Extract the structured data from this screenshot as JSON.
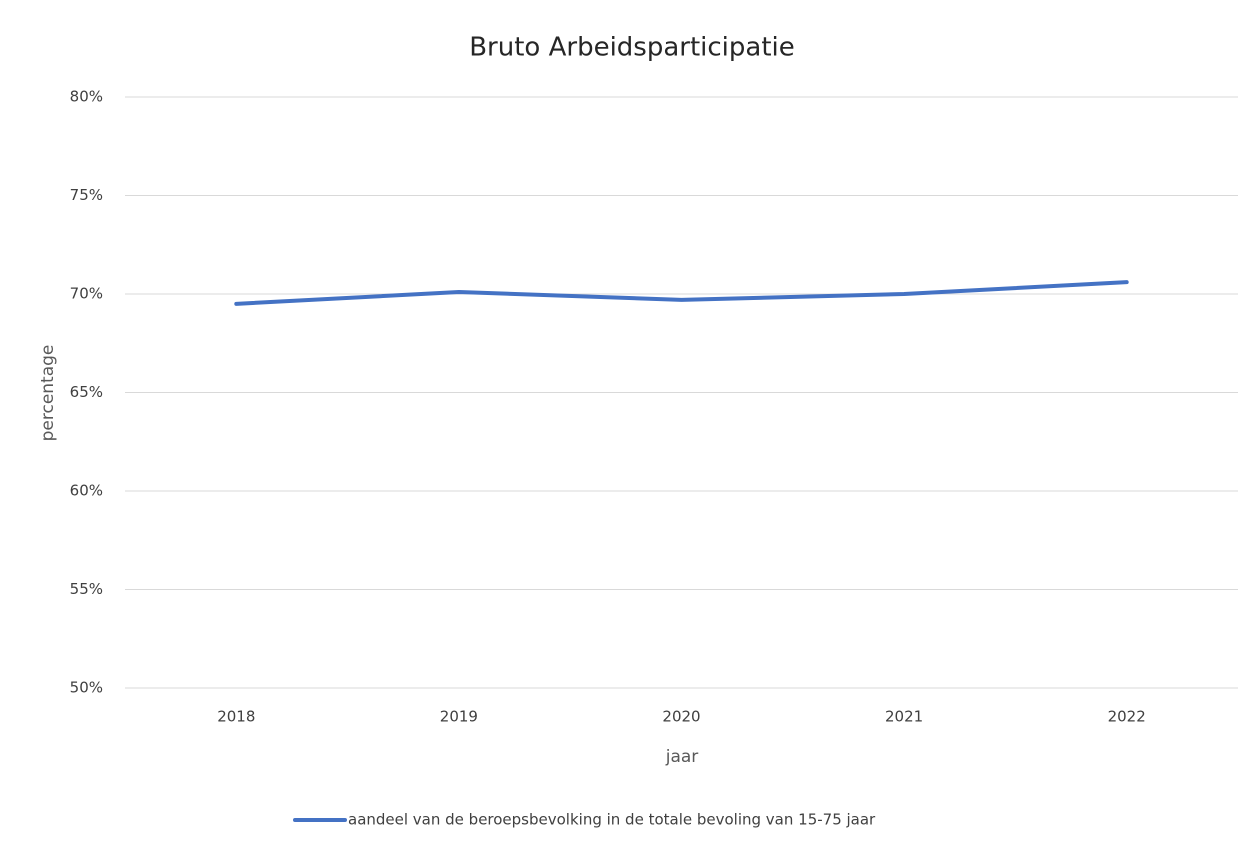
{
  "chart_data": {
    "type": "line",
    "title": "Bruto Arbeidsparticipatie",
    "x_label": "jaar",
    "y_label": "percentage",
    "categories": [
      "2018",
      "2019",
      "2020",
      "2021",
      "2022"
    ],
    "series": [
      {
        "name": "aandeel van de beroepsbevolking in de totale bevoling van 15-75 jaar",
        "color": "#4472c4",
        "values": [
          69.5,
          70.1,
          69.7,
          70.0,
          70.6
        ]
      }
    ],
    "ylim": [
      50,
      80
    ],
    "yticks": [
      {
        "value": 50,
        "label": "50%"
      },
      {
        "value": 55,
        "label": "55%"
      },
      {
        "value": 60,
        "label": "60%"
      },
      {
        "value": 65,
        "label": "65%"
      },
      {
        "value": 70,
        "label": "70%"
      },
      {
        "value": 75,
        "label": "75%"
      },
      {
        "value": 80,
        "label": "80%"
      }
    ],
    "grid": true,
    "legend": "bottom"
  }
}
